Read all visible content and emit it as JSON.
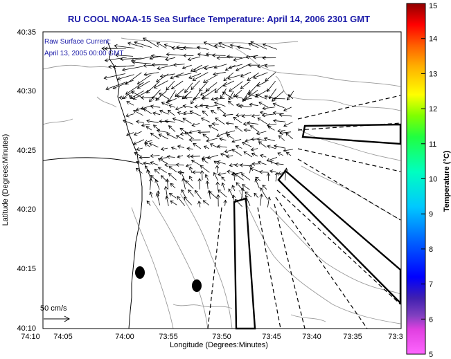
{
  "chart_data": {
    "type": "vector-field",
    "title": "RU COOL  NOAA-15  Sea Surface Temperature:  April 14, 2006 2301 GMT",
    "legend_lines": [
      "Raw Surface Current:",
      "April 13, 2005 00:00 GMT"
    ],
    "xlabel": "Longitude (Degrees:Minutes)",
    "ylabel": "Latitude (Degrees:Minutes)",
    "x_ticks": [
      "74:10",
      "74:05",
      "74:00",
      "73:55",
      "73:50",
      "73:45",
      "73:40",
      "73:35",
      "73:3"
    ],
    "y_ticks": [
      "40:35",
      "40:30",
      "40:25",
      "40:20",
      "40:15",
      "40:10"
    ],
    "xlim_minutes": [
      -4450,
      -4410
    ],
    "ylim_minutes": [
      2410,
      2435
    ],
    "scale_label": "50 cm/s",
    "colorbar": {
      "label": "Temperature (°C)",
      "min": 5,
      "max": 15,
      "ticks": [
        "15",
        "14",
        "13",
        "12",
        "11",
        "10",
        "9",
        "8",
        "7",
        "6",
        "5"
      ]
    },
    "colors": {
      "title": "#1a1aa8",
      "arrows": "#000000",
      "contours": "#9a9a9a",
      "coast": "#000000"
    }
  }
}
